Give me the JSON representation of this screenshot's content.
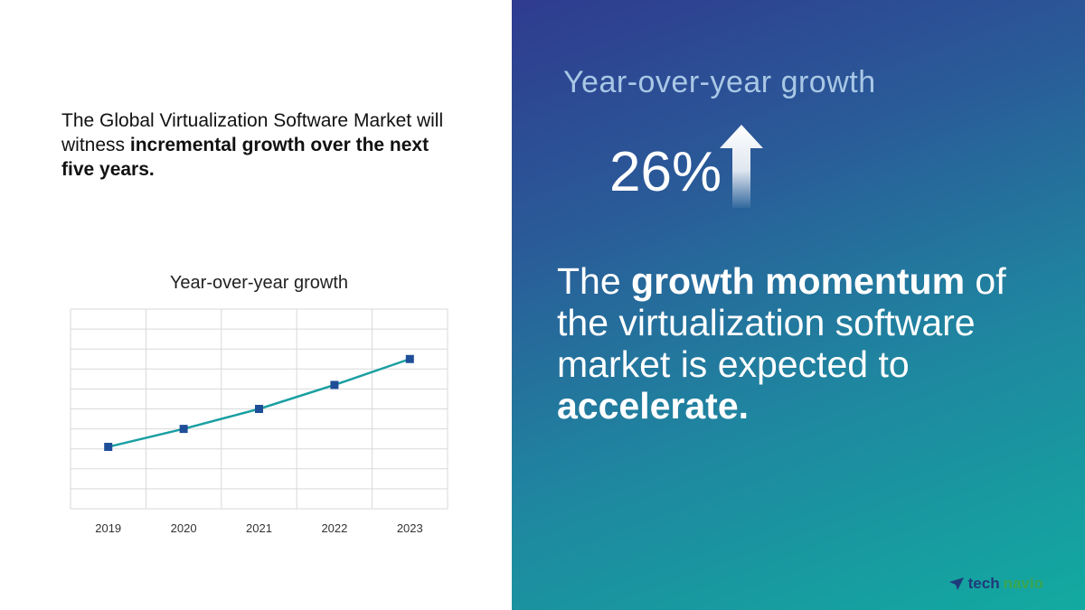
{
  "intro": {
    "part1": "The Global Virtualization Software Market will witness ",
    "bold": "incremental growth over the next five years."
  },
  "headline": {
    "title": "Year-over-year growth",
    "metric": "26%",
    "statement_part1": "The ",
    "statement_bold1": "growth momentum",
    "statement_part2": " of the virtualization software market is expected to ",
    "statement_bold2": "accelerate."
  },
  "brand": {
    "part1": "tech",
    "part2": "navio"
  },
  "colors": {
    "line": "#1a9fa2",
    "marker": "#1f4e99",
    "grid": "#d9d9d9",
    "gradient_start": "#2f3b8f",
    "gradient_end": "#12aaa0"
  },
  "chart_data": {
    "type": "line",
    "title": "Year-over-year growth",
    "xlabel": "",
    "ylabel": "",
    "categories": [
      "2019",
      "2020",
      "2021",
      "2022",
      "2023"
    ],
    "series": [
      {
        "values": [
          3.1,
          4.0,
          5.0,
          6.2,
          7.5
        ]
      }
    ],
    "ylim": [
      0,
      10
    ],
    "grid": true,
    "legend": "none"
  }
}
